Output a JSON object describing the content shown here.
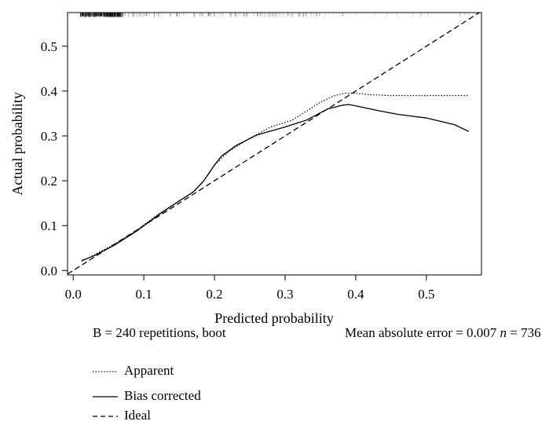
{
  "chart_data": {
    "type": "line",
    "title": "",
    "xlabel": "Predicted probability",
    "ylabel": "Actual probability",
    "xlim": [
      -0.008,
      0.578
    ],
    "ylim": [
      -0.01,
      0.575
    ],
    "xticks": [
      "0.0",
      "0.1",
      "0.2",
      "0.3",
      "0.4",
      "0.5"
    ],
    "yticks": [
      "0.0",
      "0.1",
      "0.2",
      "0.3",
      "0.4",
      "0.5"
    ],
    "grid": false,
    "series": [
      {
        "name": "Apparent",
        "style": "dotted",
        "x": [
          0.012,
          0.03,
          0.06,
          0.09,
          0.12,
          0.15,
          0.17,
          0.185,
          0.2,
          0.22,
          0.25,
          0.28,
          0.31,
          0.33,
          0.35,
          0.37,
          0.385,
          0.4,
          0.42,
          0.45,
          0.5,
          0.56
        ],
        "y": [
          0.02,
          0.035,
          0.06,
          0.09,
          0.125,
          0.155,
          0.175,
          0.2,
          0.235,
          0.265,
          0.295,
          0.32,
          0.335,
          0.355,
          0.375,
          0.39,
          0.395,
          0.395,
          0.392,
          0.39,
          0.39,
          0.39
        ]
      },
      {
        "name": "Bias corrected",
        "style": "solid",
        "x": [
          0.012,
          0.03,
          0.06,
          0.09,
          0.12,
          0.15,
          0.17,
          0.185,
          0.2,
          0.21,
          0.23,
          0.26,
          0.3,
          0.33,
          0.36,
          0.38,
          0.39,
          0.4,
          0.43,
          0.46,
          0.5,
          0.54,
          0.56
        ],
        "y": [
          0.022,
          0.033,
          0.058,
          0.088,
          0.123,
          0.155,
          0.175,
          0.2,
          0.235,
          0.255,
          0.278,
          0.302,
          0.32,
          0.335,
          0.36,
          0.368,
          0.37,
          0.367,
          0.357,
          0.348,
          0.34,
          0.325,
          0.31
        ]
      },
      {
        "name": "Ideal",
        "style": "dashed",
        "x": [
          -0.008,
          0.578
        ],
        "y": [
          -0.008,
          0.578
        ]
      }
    ],
    "rug": {
      "description_free": true,
      "dense_ranges": [
        [
          0.01,
          0.07
        ]
      ],
      "sparse_ranges": [
        [
          0.07,
          0.35
        ],
        [
          0.35,
          0.56
        ]
      ]
    },
    "legend_placement": "bottom-left"
  },
  "notes": {
    "repetitions": "B = 240 repetitions, boot",
    "mae": "Mean absolute error = 0.007",
    "n_label": "n",
    "n_value": " = 736"
  },
  "legend": {
    "apparent": "Apparent",
    "bias_corrected": "Bias corrected",
    "ideal": "Ideal"
  }
}
